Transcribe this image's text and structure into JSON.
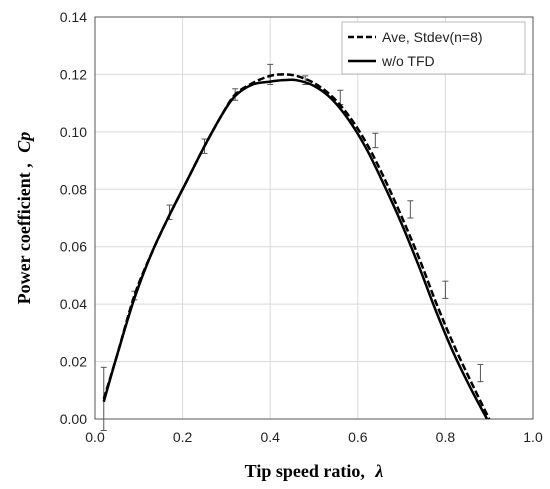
{
  "chart_data": {
    "type": "line",
    "title": "",
    "xlabel": {
      "prefix": "Tip speed ratio,",
      "symbol": "λ"
    },
    "ylabel": {
      "prefix": "Power coefficient ,",
      "symbol": "Cp"
    },
    "xlim": [
      0,
      1.0
    ],
    "ylim": [
      0,
      0.14
    ],
    "xticks": [
      "0.0",
      "0.2",
      "0.4",
      "0.6",
      "0.8",
      "1.0"
    ],
    "yticks": [
      "0.00",
      "0.02",
      "0.04",
      "0.06",
      "0.08",
      "0.10",
      "0.12",
      "0.14"
    ],
    "grid": true,
    "legend_position": "top-right",
    "series": [
      {
        "name": "Ave, Stdev(n=8)",
        "style": "dashed",
        "color": "#000000",
        "points": [
          {
            "x": 0.02,
            "y": 0.007,
            "err": 0.011
          },
          {
            "x": 0.09,
            "y": 0.043,
            "err": 0.0015
          },
          {
            "x": 0.17,
            "y": 0.072,
            "err": 0.0025
          },
          {
            "x": 0.25,
            "y": 0.095,
            "err": 0.0025
          },
          {
            "x": 0.32,
            "y": 0.113,
            "err": 0.002
          },
          {
            "x": 0.4,
            "y": 0.12,
            "err": 0.0035
          },
          {
            "x": 0.48,
            "y": 0.118,
            "err": 0.0015
          },
          {
            "x": 0.56,
            "y": 0.112,
            "err": 0.0025
          },
          {
            "x": 0.64,
            "y": 0.097,
            "err": 0.0025
          },
          {
            "x": 0.72,
            "y": 0.073,
            "err": 0.003
          },
          {
            "x": 0.8,
            "y": 0.045,
            "err": 0.003
          },
          {
            "x": 0.88,
            "y": 0.016,
            "err": 0.003
          }
        ],
        "curve": [
          [
            0.02,
            0.007
          ],
          [
            0.05,
            0.022
          ],
          [
            0.09,
            0.043
          ],
          [
            0.13,
            0.058
          ],
          [
            0.17,
            0.071
          ],
          [
            0.21,
            0.083
          ],
          [
            0.25,
            0.095
          ],
          [
            0.29,
            0.106
          ],
          [
            0.32,
            0.113
          ],
          [
            0.36,
            0.117
          ],
          [
            0.4,
            0.1195
          ],
          [
            0.43,
            0.12
          ],
          [
            0.46,
            0.1195
          ],
          [
            0.5,
            0.117
          ],
          [
            0.54,
            0.1125
          ],
          [
            0.58,
            0.1055
          ],
          [
            0.62,
            0.096
          ],
          [
            0.66,
            0.084
          ],
          [
            0.7,
            0.0705
          ],
          [
            0.74,
            0.056
          ],
          [
            0.78,
            0.04
          ],
          [
            0.82,
            0.0255
          ],
          [
            0.86,
            0.0125
          ],
          [
            0.9,
            0.0
          ]
        ]
      },
      {
        "name": "w/o TFD",
        "style": "solid",
        "color": "#000000",
        "curve": [
          [
            0.02,
            0.006
          ],
          [
            0.05,
            0.022
          ],
          [
            0.09,
            0.042
          ],
          [
            0.13,
            0.058
          ],
          [
            0.17,
            0.071
          ],
          [
            0.21,
            0.083
          ],
          [
            0.25,
            0.095
          ],
          [
            0.29,
            0.106
          ],
          [
            0.32,
            0.1125
          ],
          [
            0.36,
            0.1165
          ],
          [
            0.4,
            0.1175
          ],
          [
            0.43,
            0.118
          ],
          [
            0.46,
            0.118
          ],
          [
            0.5,
            0.116
          ],
          [
            0.54,
            0.1115
          ],
          [
            0.58,
            0.104
          ],
          [
            0.62,
            0.094
          ],
          [
            0.66,
            0.0815
          ],
          [
            0.7,
            0.068
          ],
          [
            0.74,
            0.053
          ],
          [
            0.78,
            0.037
          ],
          [
            0.82,
            0.0225
          ],
          [
            0.86,
            0.01
          ],
          [
            0.895,
            0.0
          ]
        ]
      }
    ]
  }
}
